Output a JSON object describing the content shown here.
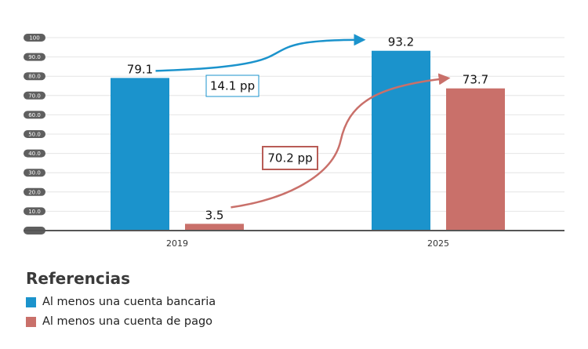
{
  "chart_data": {
    "type": "bar",
    "categories": [
      "2019",
      "2025"
    ],
    "series": [
      {
        "name": "Al menos una cuenta bancaria",
        "color": "#1b93cc",
        "values": [
          79.1,
          93.2
        ],
        "labels": [
          "79.1",
          "93.2"
        ]
      },
      {
        "name": "Al menos una cuenta de pago",
        "color": "#c9706a",
        "values": [
          3.5,
          73.7
        ],
        "labels": [
          "3.5",
          "73.7"
        ]
      }
    ],
    "ylim": [
      0,
      100
    ],
    "yticks": [
      0,
      10,
      20,
      30,
      40,
      50,
      60,
      70,
      80,
      90,
      100
    ],
    "ytick_labels": [
      "–",
      "10.0",
      "20.0",
      "30.0",
      "40.0",
      "50.0",
      "60.0",
      "70.0",
      "80.0",
      "90.0",
      "100"
    ],
    "grid": true,
    "annotations": [
      {
        "text": "14.1 pp",
        "series": 0,
        "color": "#1b93cc"
      },
      {
        "text": "70.2 pp",
        "series": 1,
        "color": "#b85c56"
      }
    ],
    "title": "",
    "xlabel": "",
    "ylabel": ""
  },
  "legend": {
    "title": "Referencias",
    "items": [
      {
        "label": "Al menos una cuenta bancaria",
        "color": "#1b93cc"
      },
      {
        "label": "Al menos una cuenta de pago",
        "color": "#c9706a"
      }
    ]
  }
}
